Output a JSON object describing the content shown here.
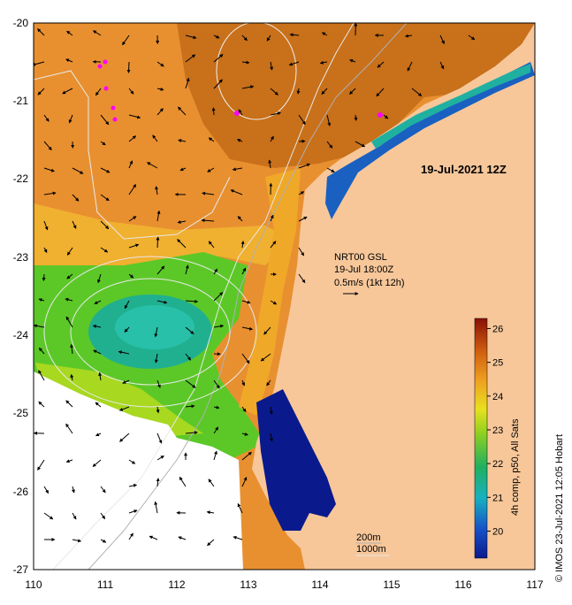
{
  "map": {
    "title": "19-Jul-2021 12Z",
    "current_info": [
      "NRT00 GSL",
      "19-Jul 18:00Z",
      "0.5m/s (1kt 12h)"
    ],
    "bathymetry_legend": [
      "200m",
      "1000m"
    ],
    "colorbar_label": "4h comp, p50, All Sats",
    "credit": "© IMOS 23-Jul-2021 12:05 Hobart",
    "lon_ticks": [
      "110",
      "111",
      "112",
      "113",
      "114",
      "115",
      "116",
      "117"
    ],
    "lat_ticks": [
      "-20",
      "-21",
      "-22",
      "-23",
      "-24",
      "-25",
      "-26",
      "-27"
    ],
    "colorbar_ticks": [
      "20",
      "21",
      "22",
      "23",
      "24",
      "25",
      "26"
    ],
    "colorbar_range": [
      19.2,
      26.3
    ],
    "colors": {
      "land": "#f7c79a",
      "no_data": "#ffffff",
      "bathy_200m": "#b0b0b0",
      "bathy_1000m": "#e8e8e8",
      "flag_markers": "#ff00ff"
    }
  }
}
